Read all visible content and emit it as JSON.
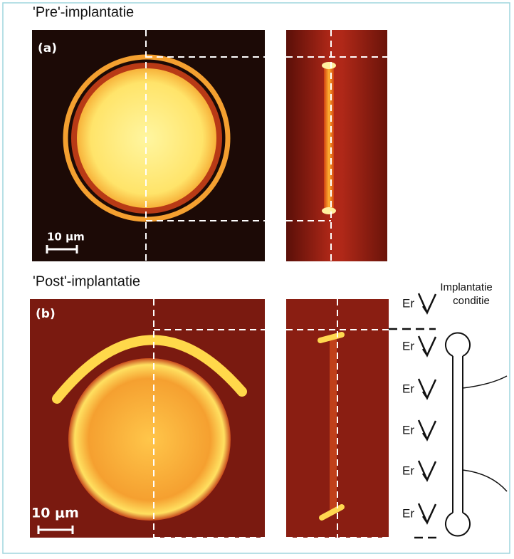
{
  "panels": [
    {
      "title": "'Pre'-implantatie",
      "label": "(a)",
      "scale": "10 μm"
    },
    {
      "title": "'Post'-implantatie",
      "label": "(b)",
      "scale": "10 μm"
    }
  ],
  "diagram": {
    "caption": [
      "Implantatie",
      "conditie"
    ],
    "species": [
      "Er",
      "Er",
      "Er",
      "Er",
      "Er",
      "Er"
    ]
  }
}
